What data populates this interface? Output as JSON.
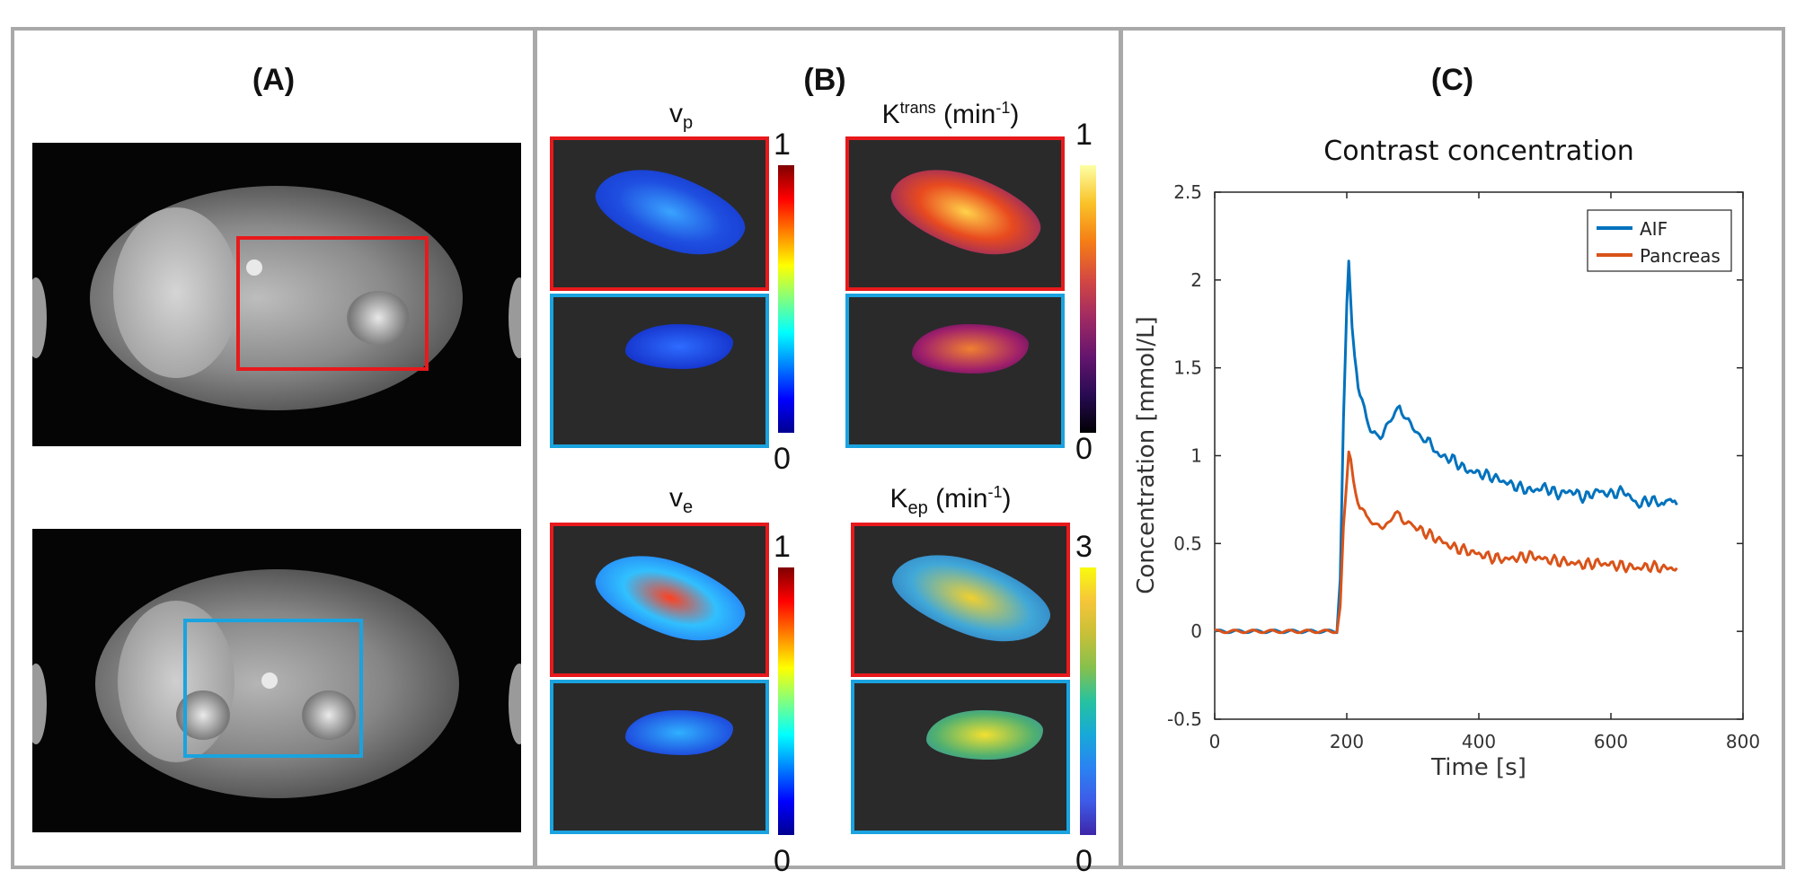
{
  "panels": {
    "a": {
      "label": "(A)"
    },
    "b": {
      "label": "(B)",
      "maps": [
        {
          "name": "v",
          "sub": "p",
          "sup": "",
          "unit": "",
          "cb_max": "1",
          "cb_min": "0"
        },
        {
          "name": "K",
          "sub": "",
          "sup": "trans",
          "unit": " (min",
          "unit_sup": "-1",
          "unit_end": ")",
          "cb_max": "1",
          "cb_min": "0"
        },
        {
          "name": "v",
          "sub": "e",
          "sup": "",
          "unit": "",
          "cb_max": "1",
          "cb_min": "0"
        },
        {
          "name": "K",
          "sub": "ep",
          "sup": "",
          "unit": " (min",
          "unit_sup": "-1",
          "unit_end": ")",
          "cb_max": "3",
          "cb_min": "0"
        }
      ]
    },
    "c": {
      "label": "(C)"
    }
  },
  "colors": {
    "roi_red": "#e8191c",
    "roi_blue": "#1aa3df",
    "aif": "#0072bd",
    "pancreas": "#d95319"
  },
  "chart_data": {
    "type": "line",
    "title": "Contrast concentration",
    "xlabel": "Time [s]",
    "ylabel": "Concentration [mmol/L]",
    "xlim": [
      0,
      800
    ],
    "ylim": [
      -0.5,
      2.5
    ],
    "xticks": [
      "0",
      "200",
      "400",
      "600",
      "800"
    ],
    "yticks": [
      "-0.5",
      "0",
      "0.5",
      "1",
      "1.5",
      "2",
      "2.5"
    ],
    "legend_position": "top-right",
    "series": [
      {
        "name": "AIF",
        "x": [
          0,
          100,
          185,
          190,
          195,
          200,
          203,
          205,
          208,
          212,
          220,
          230,
          245,
          260,
          270,
          280,
          290,
          300,
          310,
          320,
          340,
          360,
          380,
          400,
          420,
          440,
          460,
          480,
          500,
          520,
          540,
          560,
          580,
          600,
          620,
          640,
          660,
          680,
          690,
          700
        ],
        "y": [
          0,
          0,
          0,
          0.3,
          1.2,
          1.85,
          2.1,
          1.95,
          1.7,
          1.55,
          1.35,
          1.2,
          1.1,
          1.15,
          1.22,
          1.3,
          1.2,
          1.15,
          1.12,
          1.1,
          1.0,
          0.98,
          0.92,
          0.9,
          0.88,
          0.85,
          0.82,
          0.8,
          0.82,
          0.78,
          0.8,
          0.76,
          0.8,
          0.78,
          0.8,
          0.72,
          0.75,
          0.72,
          0.78,
          0.72
        ]
      },
      {
        "name": "Pancreas",
        "x": [
          0,
          100,
          185,
          190,
          195,
          200,
          203,
          206,
          210,
          220,
          230,
          245,
          260,
          270,
          280,
          290,
          300,
          320,
          340,
          360,
          380,
          400,
          420,
          440,
          460,
          480,
          500,
          520,
          540,
          560,
          580,
          600,
          620,
          640,
          660,
          680,
          700
        ],
        "y": [
          0,
          0,
          0,
          0.15,
          0.6,
          0.85,
          1.02,
          0.98,
          0.85,
          0.72,
          0.65,
          0.6,
          0.6,
          0.64,
          0.68,
          0.62,
          0.6,
          0.56,
          0.52,
          0.48,
          0.46,
          0.44,
          0.42,
          0.41,
          0.42,
          0.43,
          0.41,
          0.4,
          0.39,
          0.38,
          0.39,
          0.38,
          0.37,
          0.36,
          0.37,
          0.36,
          0.36
        ]
      }
    ]
  }
}
